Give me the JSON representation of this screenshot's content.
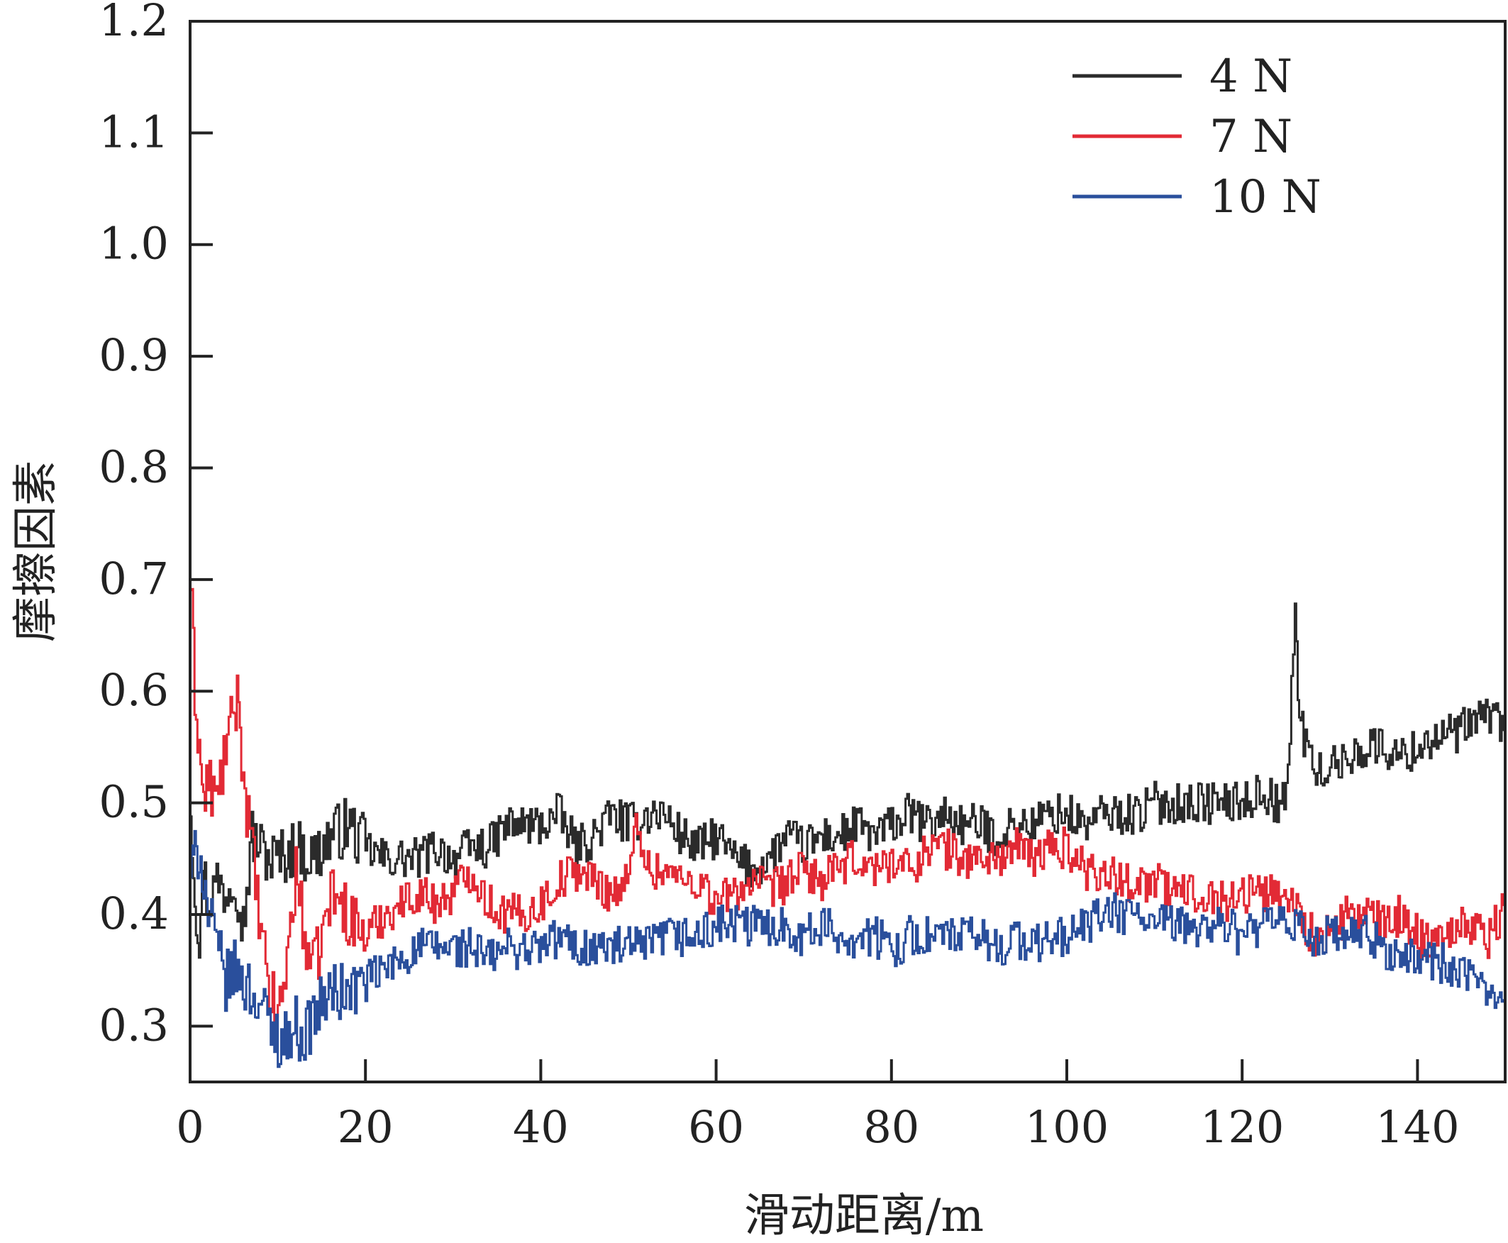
{
  "chart_data": {
    "type": "line",
    "title": "",
    "xlabel": "滑动距离/m",
    "ylabel": "摩擦因素",
    "xlim": [
      0,
      150
    ],
    "ylim": [
      0.25,
      1.2
    ],
    "xticks": [
      0,
      20,
      40,
      60,
      80,
      100,
      120,
      140
    ],
    "yticks": [
      0.3,
      0.4,
      0.5,
      0.6,
      0.7,
      0.8,
      0.9,
      1.0,
      1.1,
      1.2
    ],
    "grid": false,
    "legend_position": "top-right",
    "series": [
      {
        "name": "4 N",
        "color": "#2b2b2b",
        "x": [
          0,
          0.5,
          1,
          1.5,
          2,
          3,
          4,
          5,
          6,
          7,
          8,
          9,
          10,
          12,
          14,
          16,
          18,
          20,
          22,
          24,
          26,
          28,
          30,
          32,
          34,
          36,
          38,
          40,
          42,
          44,
          46,
          48,
          50,
          52,
          54,
          56,
          58,
          60,
          62,
          64,
          66,
          68,
          70,
          72,
          74,
          76,
          78,
          80,
          82,
          84,
          86,
          88,
          90,
          92,
          94,
          96,
          98,
          100,
          102,
          104,
          106,
          108,
          110,
          112,
          114,
          116,
          118,
          120,
          122,
          124,
          125,
          126,
          126.5,
          127,
          128,
          130,
          132,
          134,
          136,
          138,
          140,
          142,
          144,
          146,
          148,
          150
        ],
        "y": [
          0.5,
          0.42,
          0.38,
          0.44,
          0.41,
          0.43,
          0.42,
          0.44,
          0.39,
          0.47,
          0.46,
          0.45,
          0.45,
          0.46,
          0.45,
          0.47,
          0.48,
          0.46,
          0.45,
          0.45,
          0.45,
          0.46,
          0.45,
          0.46,
          0.46,
          0.48,
          0.48,
          0.48,
          0.49,
          0.46,
          0.47,
          0.49,
          0.48,
          0.49,
          0.49,
          0.47,
          0.46,
          0.47,
          0.45,
          0.44,
          0.45,
          0.47,
          0.46,
          0.47,
          0.47,
          0.48,
          0.47,
          0.48,
          0.49,
          0.48,
          0.49,
          0.48,
          0.48,
          0.47,
          0.48,
          0.48,
          0.49,
          0.49,
          0.48,
          0.49,
          0.49,
          0.49,
          0.5,
          0.5,
          0.5,
          0.5,
          0.5,
          0.5,
          0.51,
          0.5,
          0.5,
          0.67,
          0.58,
          0.56,
          0.53,
          0.53,
          0.54,
          0.55,
          0.55,
          0.54,
          0.55,
          0.56,
          0.56,
          0.57,
          0.58,
          0.57
        ]
      },
      {
        "name": "7 N",
        "color": "#e22a35",
        "x": [
          0,
          0.5,
          1,
          1.5,
          2,
          3,
          4,
          5,
          5.5,
          6,
          7,
          8,
          9,
          10,
          11,
          12,
          13,
          14,
          15,
          16,
          18,
          20,
          22,
          24,
          26,
          28,
          30,
          32,
          34,
          36,
          38,
          40,
          42,
          44,
          46,
          48,
          50,
          51,
          52,
          54,
          56,
          58,
          60,
          62,
          64,
          66,
          68,
          70,
          72,
          74,
          76,
          78,
          80,
          82,
          84,
          86,
          88,
          90,
          92,
          94,
          96,
          98,
          100,
          102,
          104,
          106,
          108,
          110,
          112,
          114,
          116,
          118,
          120,
          122,
          124,
          126,
          128,
          130,
          132,
          134,
          136,
          138,
          140,
          142,
          144,
          146,
          148,
          150
        ],
        "y": [
          0.7,
          0.6,
          0.55,
          0.5,
          0.52,
          0.5,
          0.55,
          0.58,
          0.6,
          0.52,
          0.46,
          0.38,
          0.33,
          0.31,
          0.36,
          0.44,
          0.38,
          0.35,
          0.38,
          0.42,
          0.4,
          0.38,
          0.4,
          0.41,
          0.42,
          0.41,
          0.42,
          0.44,
          0.41,
          0.4,
          0.4,
          0.41,
          0.43,
          0.44,
          0.43,
          0.42,
          0.43,
          0.49,
          0.44,
          0.44,
          0.43,
          0.43,
          0.41,
          0.42,
          0.43,
          0.42,
          0.43,
          0.44,
          0.43,
          0.44,
          0.45,
          0.44,
          0.45,
          0.44,
          0.46,
          0.46,
          0.45,
          0.45,
          0.45,
          0.46,
          0.45,
          0.46,
          0.46,
          0.44,
          0.44,
          0.43,
          0.43,
          0.43,
          0.42,
          0.42,
          0.42,
          0.41,
          0.42,
          0.42,
          0.42,
          0.41,
          0.38,
          0.38,
          0.4,
          0.4,
          0.39,
          0.4,
          0.38,
          0.38,
          0.39,
          0.39,
          0.38,
          0.41
        ]
      },
      {
        "name": "10 N",
        "color": "#2a4f9c",
        "x": [
          0,
          0.5,
          1,
          1.5,
          2,
          3,
          4,
          5,
          6,
          7,
          8,
          9,
          10,
          11,
          12,
          13,
          14,
          15,
          16,
          18,
          20,
          22,
          24,
          26,
          28,
          30,
          32,
          34,
          36,
          38,
          40,
          42,
          44,
          46,
          48,
          50,
          52,
          54,
          56,
          58,
          60,
          62,
          64,
          66,
          68,
          70,
          72,
          74,
          76,
          78,
          80,
          82,
          84,
          86,
          88,
          90,
          92,
          94,
          96,
          98,
          100,
          102,
          104,
          106,
          108,
          110,
          112,
          114,
          116,
          118,
          120,
          122,
          124,
          126,
          128,
          130,
          132,
          134,
          136,
          138,
          140,
          142,
          144,
          146,
          148,
          150
        ],
        "y": [
          0.44,
          0.45,
          0.46,
          0.43,
          0.4,
          0.37,
          0.34,
          0.35,
          0.34,
          0.33,
          0.32,
          0.3,
          0.29,
          0.29,
          0.3,
          0.29,
          0.31,
          0.32,
          0.33,
          0.33,
          0.34,
          0.35,
          0.36,
          0.37,
          0.37,
          0.37,
          0.37,
          0.36,
          0.37,
          0.37,
          0.37,
          0.38,
          0.37,
          0.37,
          0.37,
          0.37,
          0.37,
          0.38,
          0.38,
          0.38,
          0.39,
          0.39,
          0.39,
          0.39,
          0.39,
          0.38,
          0.39,
          0.38,
          0.38,
          0.38,
          0.37,
          0.38,
          0.38,
          0.38,
          0.38,
          0.38,
          0.37,
          0.38,
          0.37,
          0.38,
          0.38,
          0.39,
          0.4,
          0.4,
          0.4,
          0.39,
          0.39,
          0.39,
          0.39,
          0.39,
          0.38,
          0.39,
          0.39,
          0.39,
          0.38,
          0.38,
          0.38,
          0.38,
          0.37,
          0.36,
          0.36,
          0.36,
          0.35,
          0.34,
          0.33,
          0.34
        ]
      }
    ]
  }
}
